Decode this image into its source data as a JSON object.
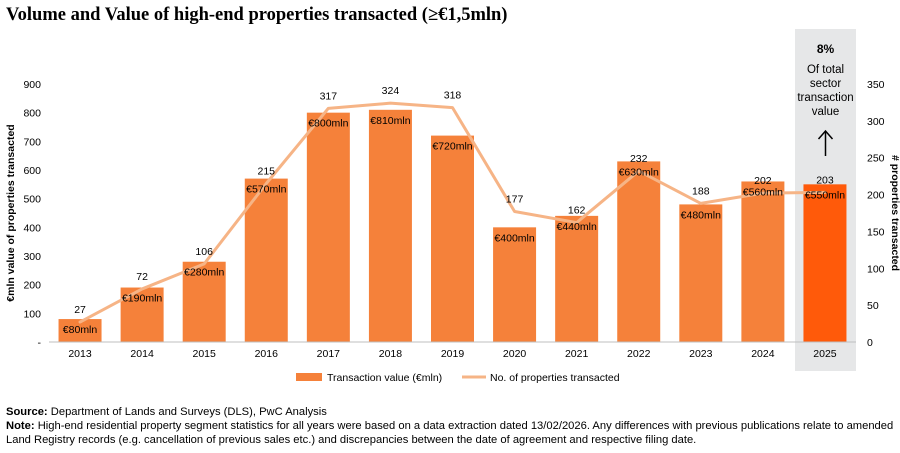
{
  "title": "Volume and Value of high-end properties transacted (≥€1,5mln)",
  "chart_data": {
    "type": "bar",
    "categories": [
      "2013",
      "2014",
      "2015",
      "2016",
      "2017",
      "2018",
      "2019",
      "2020",
      "2021",
      "2022",
      "2023",
      "2024",
      "2025"
    ],
    "series": [
      {
        "name": "Transaction value (€mln)",
        "type": "bar",
        "axis": "left",
        "values": [
          80,
          190,
          280,
          570,
          800,
          810,
          720,
          400,
          440,
          630,
          480,
          560,
          550
        ],
        "labels": [
          "€80mln",
          "€190mln",
          "€280mln",
          "€570mln",
          "€800mln",
          "€810mln",
          "€720mln",
          "€400mln",
          "€440mln",
          "€630mln",
          "€480mln",
          "€560mln",
          "€550mln"
        ],
        "color": "#f5813a",
        "highlight_color": "#ff5a0a"
      },
      {
        "name": "No. of properties transacted",
        "type": "line",
        "axis": "right",
        "values": [
          27,
          72,
          106,
          215,
          317,
          324,
          318,
          177,
          162,
          232,
          188,
          202,
          203
        ],
        "color": "#f6b486"
      }
    ],
    "ylabel": "€mln value of properties transacted",
    "ylabel_right": "# properties transacted",
    "ylim": [
      0,
      900
    ],
    "ylim_right": [
      0,
      350
    ],
    "yticks": [
      "-",
      "100",
      "200",
      "300",
      "400",
      "500",
      "600",
      "700",
      "800",
      "900"
    ],
    "yticks_right": [
      "0",
      "50",
      "100",
      "150",
      "200",
      "250",
      "300",
      "350"
    ],
    "legend_position": "bottom",
    "grid": false,
    "highlight": {
      "category": "2025",
      "percent": "8%",
      "text": [
        "Of total",
        "sector",
        "transaction",
        "value"
      ],
      "band_color": "#e6e7e8"
    }
  },
  "footer": {
    "source_label": "Source:",
    "source_text": " Department of Lands and Surveys (DLS), PwC Analysis",
    "note_label": "Note:",
    "note_text": " High-end residential property segment statistics for all years were based on a data extraction dated 13/02/2026. Any differences with previous publications relate to amended Land Registry records (e.g. cancellation of previous sales etc.) and discrepancies between the date of agreement and respective filing date."
  }
}
